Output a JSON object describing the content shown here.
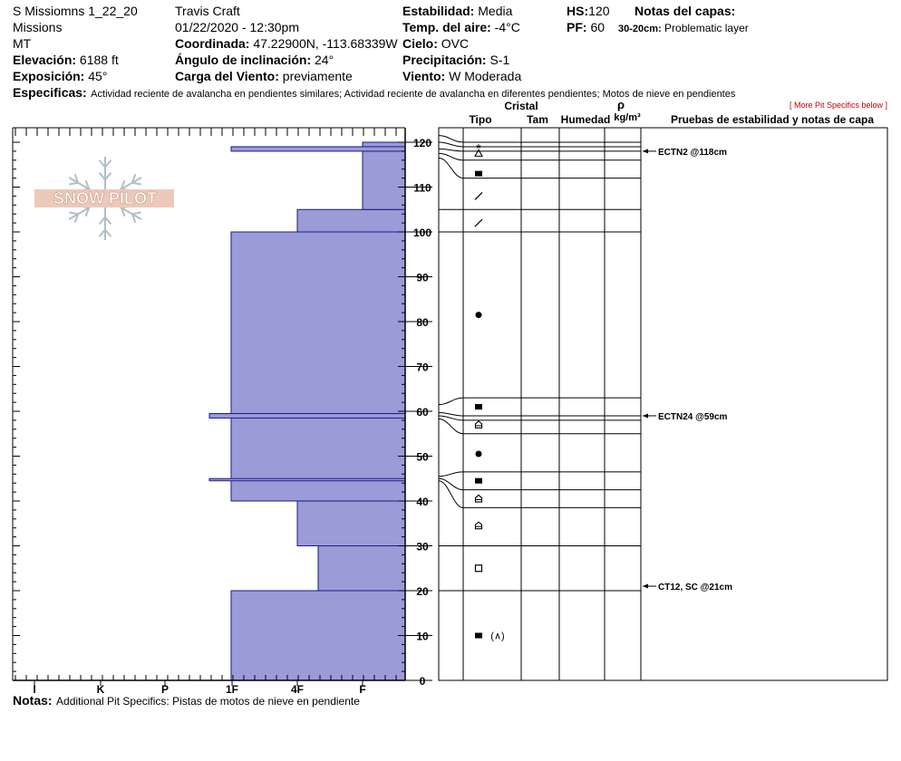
{
  "header": {
    "pit_name": "S Missiomns 1_22_20",
    "area": "Missions",
    "state": "MT",
    "elevation_label": "Elevación:",
    "elevation": "6188 ft",
    "aspect_label": "Exposición:",
    "aspect": "45°",
    "observer": "Travis  Craft",
    "datetime": "01/22/2020 - 12:30pm",
    "coord_label": "Coordinada:",
    "coord": "47.22900N, -113.68339W",
    "incline_label": "Ángulo de inclinación:",
    "incline": "24°",
    "wind_load_label": "Carga del Viento:",
    "wind_load": "previamente",
    "stability_label": "Estabilidad:",
    "stability": "Media",
    "air_temp_label": "Temp. del aire:",
    "air_temp": "-4°C",
    "sky_label": "Cielo:",
    "sky": "OVC",
    "precip_label": "Precipitación:",
    "precip": "S-1",
    "wind_label": "Viento:",
    "wind": "W Moderada",
    "hs_label": "HS:",
    "hs": "120",
    "pf_label": "PF:",
    "pf": "60",
    "layer_notes_label": "Notas del capas:",
    "layer_note_range": "30-20cm:",
    "layer_note_text": "Problematic layer",
    "specifics_label": "Especificas:",
    "specifics": "Actividad reciente de avalancha en pendientes similares; Actividad reciente de avalancha en diferentes pendientes; Motos de nieve en pendientes",
    "more_specifics": "[ More Pit Specifics below ]"
  },
  "logo": {
    "text": "SNOW PILOT"
  },
  "table_headers": {
    "cristal": "Cristal",
    "rho": "ρ",
    "tipo": "Tipo",
    "tam": "Tam",
    "humedad": "Humedad",
    "density_unit": "kg/m³",
    "tests": "Pruebas de estabilidad y notas de capa"
  },
  "notes": {
    "label": "Notas:",
    "text": "Additional Pit Specifics: Pistas de motos de nieve en pendiente"
  },
  "colors": {
    "hardness_fill": "#9b9bd7",
    "hardness_stroke": "#1a1a8c"
  },
  "chart_data": {
    "type": "bar",
    "hardness_axis_labels": [
      "I",
      "K",
      "P",
      "1F",
      "4F",
      "F"
    ],
    "depth_axis": {
      "range": [
        0,
        120
      ],
      "ticks": [
        0,
        10,
        20,
        30,
        40,
        50,
        60,
        70,
        80,
        90,
        100,
        110,
        120
      ],
      "unit": "cm"
    },
    "hardness_profile": [
      {
        "bottom": 0,
        "top": 20,
        "hardness": "1F"
      },
      {
        "bottom": 20,
        "top": 30,
        "hardness": "4F-"
      },
      {
        "bottom": 30,
        "top": 40,
        "hardness": "4F"
      },
      {
        "bottom": 40,
        "top": 100,
        "hardness": "1F"
      },
      {
        "bottom": 100,
        "top": 105,
        "hardness": "4F"
      },
      {
        "bottom": 105,
        "top": 120,
        "hardness": "F"
      }
    ],
    "thin_layers": [
      {
        "bottom": 118,
        "top": 119,
        "hardness": "1F"
      },
      {
        "bottom": 58.5,
        "top": 59.5,
        "hardness": "P+"
      },
      {
        "bottom": 44.5,
        "top": 45,
        "hardness": "P+"
      }
    ],
    "layer_boundaries": [
      120,
      119,
      118,
      116,
      112,
      105,
      100,
      63,
      59,
      58,
      55,
      46.5,
      42.5,
      38.5,
      30,
      20
    ],
    "grain_symbols": [
      {
        "depth": 118.5,
        "symbol": "*"
      },
      {
        "depth": 117.5,
        "symbol": "Δ"
      },
      {
        "depth": 113,
        "symbol": "■"
      },
      {
        "depth": 108,
        "symbol": "/"
      },
      {
        "depth": 102,
        "symbol": "/"
      },
      {
        "depth": 81.5,
        "symbol": "●"
      },
      {
        "depth": 61,
        "symbol": "■"
      },
      {
        "depth": 57,
        "symbol": "⌂"
      },
      {
        "depth": 50.5,
        "symbol": "●"
      },
      {
        "depth": 44.5,
        "symbol": "■"
      },
      {
        "depth": 40.5,
        "symbol": "⌂"
      },
      {
        "depth": 34.5,
        "symbol": "⌂"
      },
      {
        "depth": 25,
        "symbol": "□"
      },
      {
        "depth": 10,
        "symbol": "■",
        "extra": "(∧)"
      }
    ],
    "stability_tests": [
      {
        "depth": 118,
        "label": "ECTN2 @118cm"
      },
      {
        "depth": 59,
        "label": "ECTN24 @59cm"
      },
      {
        "depth": 21,
        "label": "CT12, SC @21cm"
      }
    ]
  }
}
